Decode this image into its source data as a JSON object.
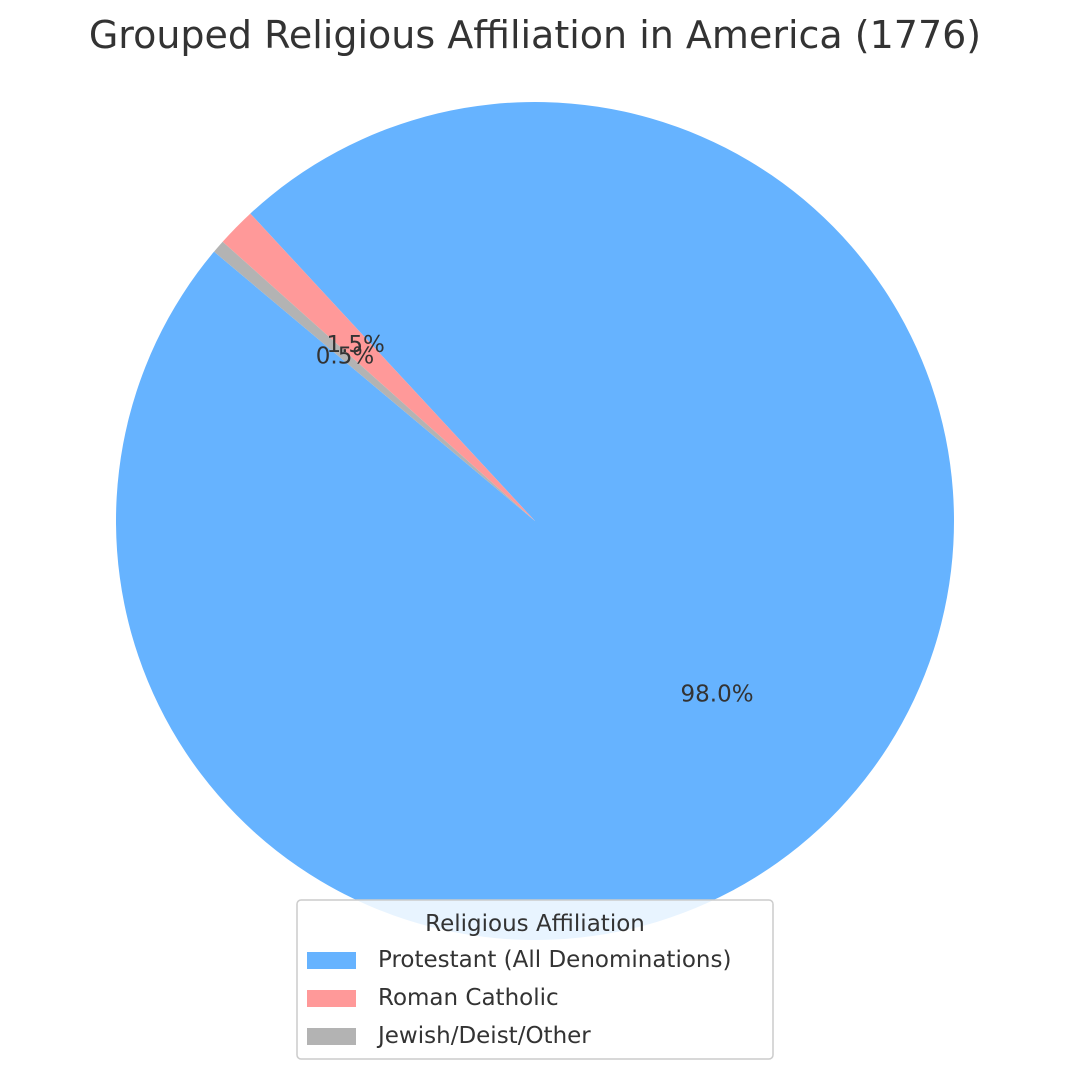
{
  "chart_data": {
    "type": "pie",
    "title": "Grouped Religious Affiliation in America (1776)",
    "slices": [
      {
        "label": "Protestant (All Denominations)",
        "value": 98.0,
        "color": "#66b3ff",
        "pct_label": "98.0%"
      },
      {
        "label": "Roman Catholic",
        "value": 1.5,
        "color": "#ff9999",
        "pct_label": "1.5%"
      },
      {
        "label": "Jewish/Deist/Other",
        "value": 0.5,
        "color": "#b3b3b3",
        "pct_label": "0.5%"
      }
    ],
    "start_angle_deg": 140,
    "direction": "counterclockwise",
    "legend": {
      "title": "Religious Affiliation",
      "placement": "bottom-center"
    }
  }
}
